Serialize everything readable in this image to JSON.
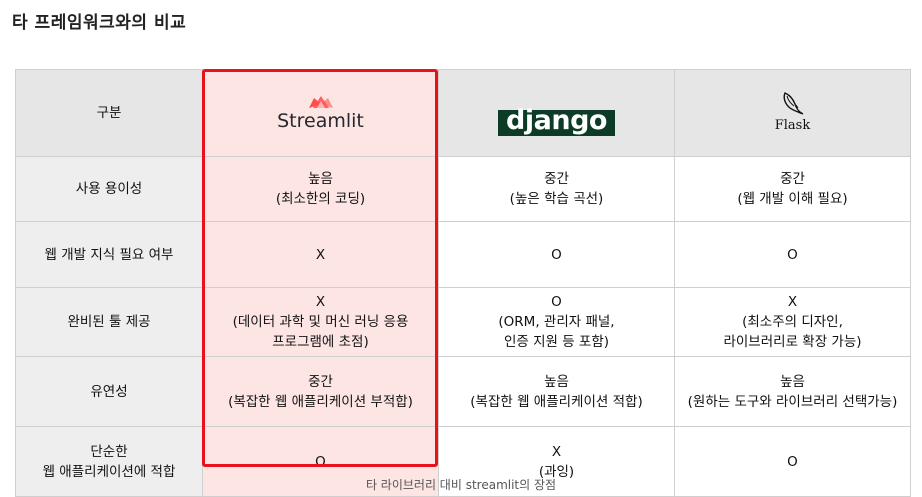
{
  "page_title": "타 프레임워크와의 비교",
  "header": {
    "category": "구분",
    "streamlit_logo": "Streamlit",
    "django_logo": "django",
    "flask_logo": "Flask"
  },
  "rows": [
    {
      "label": "사용 용이성",
      "streamlit": "높음\n(최소한의 코딩)",
      "django": "중간\n(높은 학습 곡선)",
      "flask": "중간\n(웹 개발 이해 필요)"
    },
    {
      "label": "웹 개발 지식 필요 여부",
      "streamlit": "X",
      "django": "O",
      "flask": "O"
    },
    {
      "label": "완비된 툴 제공",
      "streamlit": "X\n(데이터 과학 및 머신 러닝 응용\n프로그램에 초점)",
      "django": "O\n(ORM, 관리자 패널,\n인증 지원 등 포함)",
      "flask": "X\n(최소주의 디자인,\n라이브러리로 확장 가능)"
    },
    {
      "label": "유연성",
      "streamlit": "중간\n(복잡한 웹 애플리케이션 부적합)",
      "django": "높음\n(복잡한 웹 애플리케이션 적합)",
      "flask": "높음\n(원하는 도구와 라이브러리 선택가능)"
    },
    {
      "label": "단순한\n웹 애플리케이션에 적합",
      "streamlit": "O",
      "django": "X\n(과잉)",
      "flask": "O"
    }
  ],
  "caption": "타 라이브러리 대비 streamlit의 장점",
  "colors": {
    "highlight": "#e8121d",
    "streamlit_bg": "#fce5e3",
    "django_green": "#0c3c26"
  }
}
